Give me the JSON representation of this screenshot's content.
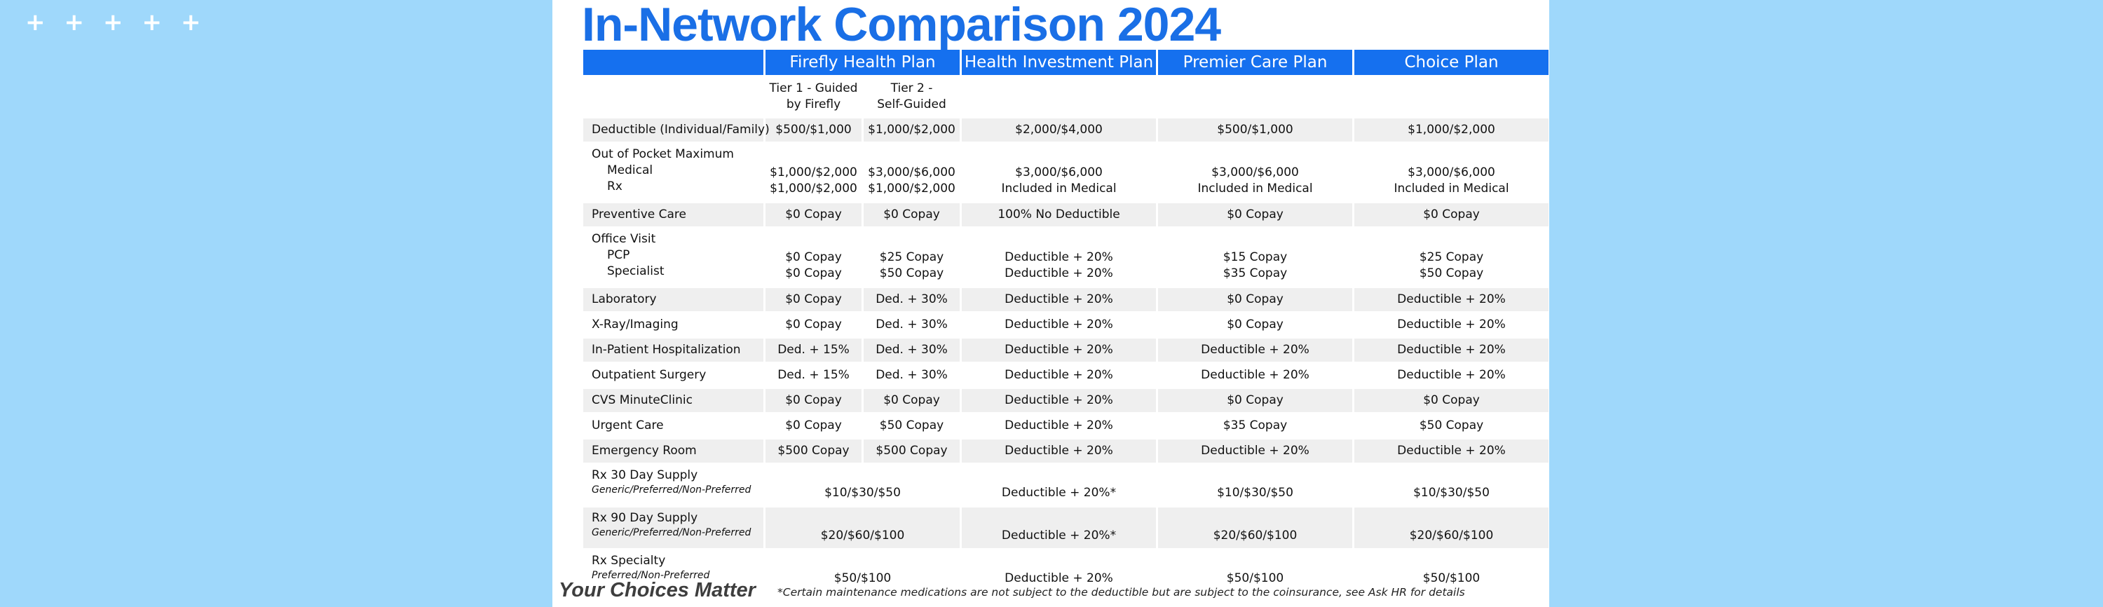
{
  "header": {
    "title": "In-Network Comparison 2024"
  },
  "table": {
    "columns": [
      "",
      "Firefly Health Plan",
      "Health Investment Plan",
      "Premier Care Plan",
      "Choice Plan"
    ],
    "subheaders": [
      [
        "Tier 1 - Guided",
        "by Firefly"
      ],
      [
        "Tier 2 -",
        "Self-Guided"
      ]
    ],
    "rows": [
      {
        "label": [
          "Deductible (Individual/Family)"
        ],
        "cells": [
          [
            "$500/$1,000"
          ],
          [
            "$1,000/$2,000"
          ],
          [
            "$2,000/$4,000"
          ],
          [
            "$500/$1,000"
          ],
          [
            "$1,000/$2,000"
          ]
        ]
      },
      {
        "label": [
          "Out of Pocket Maximum",
          "Medical",
          "Rx"
        ],
        "cells": [
          [
            "$1,000/$2,000",
            "$1,000/$2,000"
          ],
          [
            "$3,000/$6,000",
            "$1,000/$2,000"
          ],
          [
            "$3,000/$6,000",
            "Included in Medical"
          ],
          [
            "$3,000/$6,000",
            "Included in Medical"
          ],
          [
            "$3,000/$6,000",
            "Included in Medical"
          ]
        ]
      },
      {
        "label": [
          "Preventive Care"
        ],
        "cells": [
          [
            "$0 Copay"
          ],
          [
            "$0 Copay"
          ],
          [
            "100% No Deductible"
          ],
          [
            "$0 Copay"
          ],
          [
            "$0 Copay"
          ]
        ]
      },
      {
        "label": [
          "Office Visit",
          "PCP",
          "Specialist"
        ],
        "cells": [
          [
            "$0 Copay",
            "$0 Copay"
          ],
          [
            "$25 Copay",
            "$50 Copay"
          ],
          [
            "Deductible + 20%",
            "Deductible + 20%"
          ],
          [
            "$15 Copay",
            "$35 Copay"
          ],
          [
            "$25 Copay",
            "$50 Copay"
          ]
        ]
      },
      {
        "label": [
          "Laboratory"
        ],
        "cells": [
          [
            "$0 Copay"
          ],
          [
            "Ded. + 30%"
          ],
          [
            "Deductible + 20%"
          ],
          [
            "$0 Copay"
          ],
          [
            "Deductible + 20%"
          ]
        ]
      },
      {
        "label": [
          "X-Ray/Imaging"
        ],
        "cells": [
          [
            "$0 Copay"
          ],
          [
            "Ded. + 30%"
          ],
          [
            "Deductible + 20%"
          ],
          [
            "$0 Copay"
          ],
          [
            "Deductible + 20%"
          ]
        ]
      },
      {
        "label": [
          "In-Patient Hospitalization"
        ],
        "cells": [
          [
            "Ded. + 15%"
          ],
          [
            "Ded. + 30%"
          ],
          [
            "Deductible + 20%"
          ],
          [
            "Deductible + 20%"
          ],
          [
            "Deductible + 20%"
          ]
        ]
      },
      {
        "label": [
          "Outpatient Surgery"
        ],
        "cells": [
          [
            "Ded. + 15%"
          ],
          [
            "Ded. + 30%"
          ],
          [
            "Deductible + 20%"
          ],
          [
            "Deductible + 20%"
          ],
          [
            "Deductible + 20%"
          ]
        ]
      },
      {
        "label": [
          "CVS MinuteClinic"
        ],
        "cells": [
          [
            "$0 Copay"
          ],
          [
            "$0 Copay"
          ],
          [
            "Deductible + 20%"
          ],
          [
            "$0 Copay"
          ],
          [
            "$0 Copay"
          ]
        ]
      },
      {
        "label": [
          "Urgent Care"
        ],
        "cells": [
          [
            "$0 Copay"
          ],
          [
            "$50 Copay"
          ],
          [
            "Deductible + 20%"
          ],
          [
            "$35 Copay"
          ],
          [
            "$50 Copay"
          ]
        ]
      },
      {
        "label": [
          "Emergency Room"
        ],
        "cells": [
          [
            "$500 Copay"
          ],
          [
            "$500 Copay"
          ],
          [
            "Deductible + 20%"
          ],
          [
            "Deductible + 20%"
          ],
          [
            "Deductible + 20%"
          ]
        ]
      },
      {
        "label": [
          "Rx 30 Day Supply",
          "Generic/Preferred/Non-Preferred"
        ],
        "cells": [
          [
            "$10/$30/$50"
          ],
          [
            "Deductible + 20%*"
          ],
          [
            "$10/$30/$50"
          ],
          [
            "$10/$30/$50"
          ]
        ]
      },
      {
        "label": [
          "Rx 90 Day Supply",
          "Generic/Preferred/Non-Preferred"
        ],
        "cells": [
          [
            "$20/$60/$100"
          ],
          [
            "Deductible + 20%*"
          ],
          [
            "$20/$60/$100"
          ],
          [
            "$20/$60/$100"
          ]
        ]
      },
      {
        "label": [
          "Rx Specialty",
          "Preferred/Non-Preferred"
        ],
        "cells": [
          [
            "$50/$100"
          ],
          [
            "Deductible + 20%"
          ],
          [
            "$50/$100"
          ],
          [
            "$50/$100"
          ]
        ]
      }
    ]
  },
  "footer": {
    "tagline": "Your Choices Matter",
    "note": "*Certain maintenance medications are not subject to the deductible but are subject to the coinsurance, see Ask HR for details"
  }
}
